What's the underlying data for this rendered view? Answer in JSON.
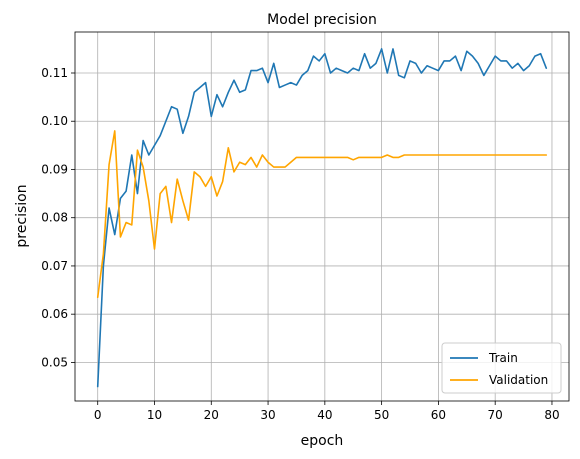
{
  "chart_data": {
    "type": "line",
    "title": "Model precision",
    "xlabel": "epoch",
    "ylabel": "precision",
    "xlim": [
      -4,
      83
    ],
    "ylim": [
      0.042,
      0.1185
    ],
    "xticks": [
      0,
      10,
      20,
      30,
      40,
      50,
      60,
      70,
      80
    ],
    "yticks": [
      0.05,
      0.06,
      0.07,
      0.08,
      0.09,
      0.1,
      0.11
    ],
    "ytick_labels": [
      "0.05",
      "0.06",
      "0.07",
      "0.08",
      "0.09",
      "0.10",
      "0.11"
    ],
    "grid": true,
    "legend_position": "lower-right",
    "series": [
      {
        "name": "Train",
        "color": "#1f77b4",
        "x": [
          0,
          1,
          2,
          3,
          4,
          5,
          6,
          7,
          8,
          9,
          10,
          11,
          12,
          13,
          14,
          15,
          16,
          17,
          18,
          19,
          20,
          21,
          22,
          23,
          24,
          25,
          26,
          27,
          28,
          29,
          30,
          31,
          32,
          33,
          34,
          35,
          36,
          37,
          38,
          39,
          40,
          41,
          42,
          43,
          44,
          45,
          46,
          47,
          48,
          49,
          50,
          51,
          52,
          53,
          54,
          55,
          56,
          57,
          58,
          59,
          60,
          61,
          62,
          63,
          64,
          65,
          66,
          67,
          68,
          69,
          70,
          71,
          72,
          73,
          74,
          75,
          76,
          77,
          78,
          79
        ],
        "values": [
          0.045,
          0.07,
          0.082,
          0.0765,
          0.084,
          0.0855,
          0.093,
          0.085,
          0.096,
          0.093,
          0.095,
          0.097,
          0.1,
          0.103,
          0.1025,
          0.0975,
          0.101,
          0.106,
          0.107,
          0.108,
          0.101,
          0.1055,
          0.103,
          0.106,
          0.1085,
          0.106,
          0.1065,
          0.1105,
          0.1105,
          0.111,
          0.108,
          0.112,
          0.107,
          0.1075,
          0.108,
          0.1075,
          0.1095,
          0.1105,
          0.1135,
          0.1125,
          0.114,
          0.11,
          0.111,
          0.1105,
          0.11,
          0.111,
          0.1105,
          0.114,
          0.111,
          0.112,
          0.115,
          0.11,
          0.115,
          0.1095,
          0.109,
          0.1125,
          0.112,
          0.11,
          0.1115,
          0.111,
          0.1105,
          0.1125,
          0.1125,
          0.1135,
          0.1105,
          0.1145,
          0.1135,
          0.112,
          0.1095,
          0.1115,
          0.1135,
          0.1125,
          0.1125,
          0.111,
          0.112,
          0.1105,
          0.1115,
          0.1135,
          0.114,
          0.111
        ]
      },
      {
        "name": "Validation",
        "color": "#ffa500",
        "x": [
          0,
          1,
          2,
          3,
          4,
          5,
          6,
          7,
          8,
          9,
          10,
          11,
          12,
          13,
          14,
          15,
          16,
          17,
          18,
          19,
          20,
          21,
          22,
          23,
          24,
          25,
          26,
          27,
          28,
          29,
          30,
          31,
          32,
          33,
          34,
          35,
          36,
          37,
          38,
          39,
          40,
          41,
          42,
          43,
          44,
          45,
          46,
          47,
          48,
          49,
          50,
          51,
          52,
          53,
          54,
          55,
          56,
          57,
          58,
          59,
          60,
          61,
          62,
          63,
          64,
          65,
          66,
          67,
          68,
          69,
          70,
          71,
          72,
          73,
          74,
          75,
          76,
          77,
          78,
          79
        ],
        "values": [
          0.0635,
          0.0725,
          0.091,
          0.098,
          0.076,
          0.079,
          0.0785,
          0.094,
          0.0905,
          0.0835,
          0.0735,
          0.085,
          0.0865,
          0.079,
          0.088,
          0.0835,
          0.0795,
          0.0895,
          0.0885,
          0.0865,
          0.0885,
          0.0845,
          0.0875,
          0.0945,
          0.0895,
          0.0915,
          0.091,
          0.0925,
          0.0905,
          0.093,
          0.0915,
          0.0905,
          0.0905,
          0.0905,
          0.0915,
          0.0925,
          0.0925,
          0.0925,
          0.0925,
          0.0925,
          0.0925,
          0.0925,
          0.0925,
          0.0925,
          0.0925,
          0.092,
          0.0925,
          0.0925,
          0.0925,
          0.0925,
          0.0925,
          0.093,
          0.0925,
          0.0925,
          0.093,
          0.093,
          0.093,
          0.093,
          0.093,
          0.093,
          0.093,
          0.093,
          0.093,
          0.093,
          0.093,
          0.093,
          0.093,
          0.093,
          0.093,
          0.093,
          0.093,
          0.093,
          0.093,
          0.093,
          0.093,
          0.093,
          0.093,
          0.093,
          0.093,
          0.093
        ]
      }
    ]
  }
}
